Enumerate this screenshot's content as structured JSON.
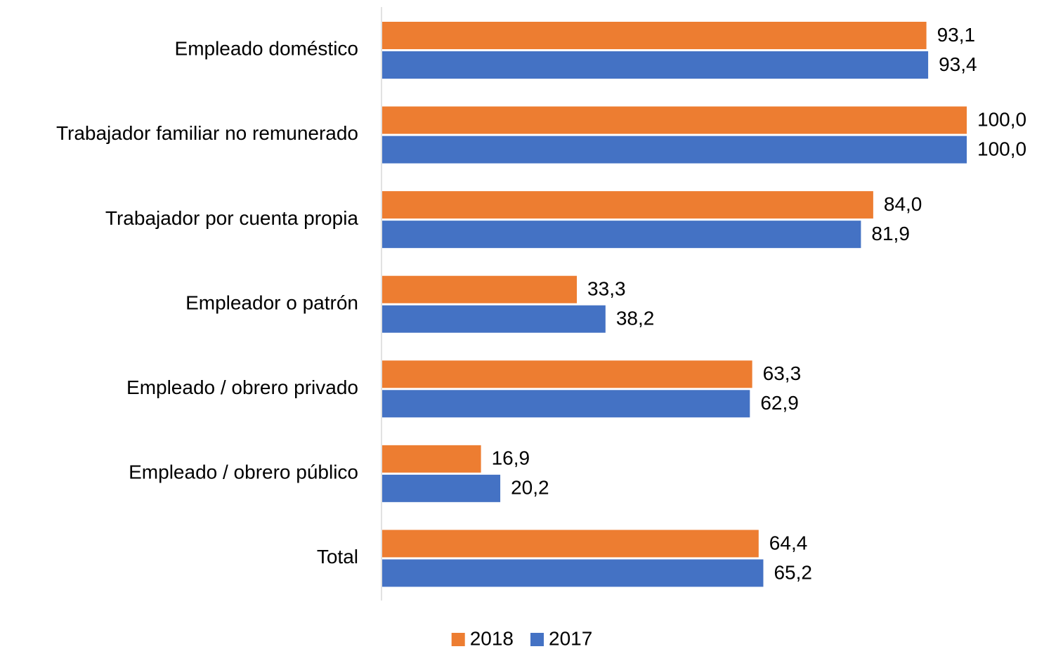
{
  "chart_data": {
    "type": "bar",
    "orientation": "horizontal",
    "categories": [
      "Empleado doméstico",
      "Trabajador familiar no remunerado",
      "Trabajador por cuenta propia",
      "Empleador o patrón",
      "Empleado / obrero privado",
      "Empleado / obrero público",
      "Total"
    ],
    "series": [
      {
        "name": "2018",
        "color": "#ED7D31",
        "values": [
          93.1,
          100.0,
          84.0,
          33.3,
          63.3,
          16.9,
          64.4
        ],
        "value_labels": [
          "93,1",
          "100,0",
          "84,0",
          "33,3",
          "63,3",
          "16,9",
          "64,4"
        ]
      },
      {
        "name": "2017",
        "color": "#4472C4",
        "values": [
          93.4,
          100.0,
          81.9,
          38.2,
          62.9,
          20.2,
          65.2
        ],
        "value_labels": [
          "93,4",
          "100,0",
          "81,9",
          "38,2",
          "62,9",
          "20,2",
          "65,2"
        ]
      }
    ],
    "xlim": [
      0,
      100
    ],
    "legend": "bottom"
  }
}
